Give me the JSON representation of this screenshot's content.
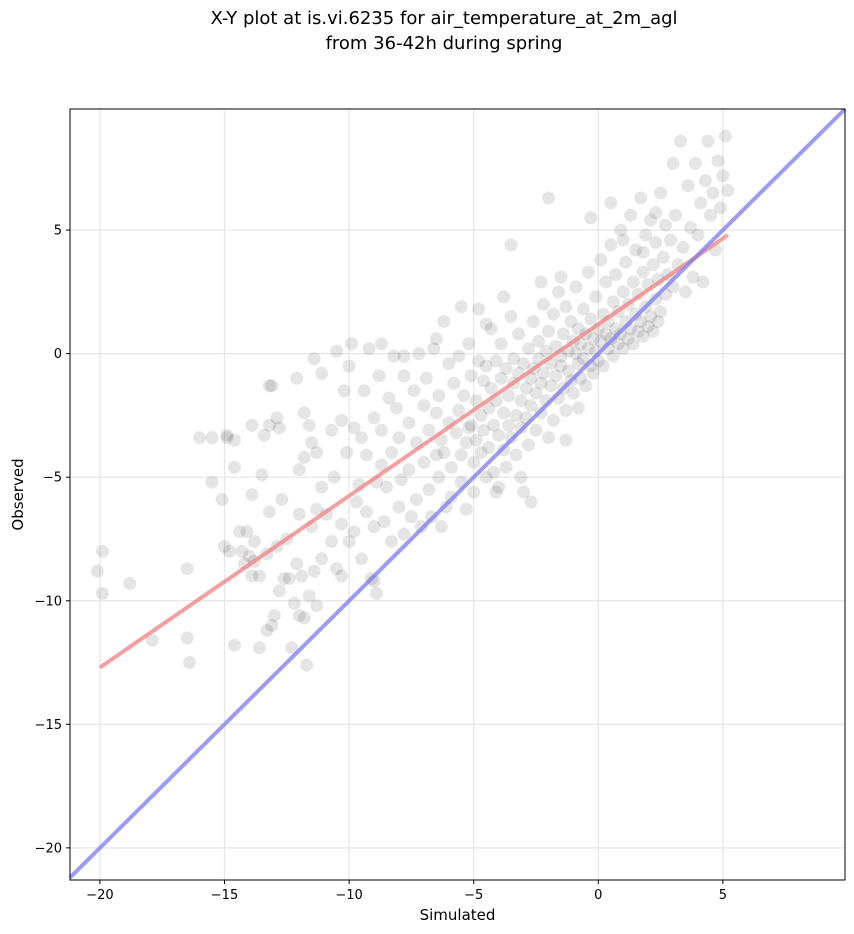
{
  "chart_data": {
    "type": "scatter",
    "title_line1": "X-Y plot at is.vi.6235 for air_temperature_at_2m_agl",
    "title_line2": "from 36-42h during spring",
    "xlabel": "Simulated",
    "ylabel": "Observed",
    "xlim": [
      -21.2,
      9.9
    ],
    "ylim": [
      -21.3,
      9.9
    ],
    "xticks": [
      -20,
      -15,
      -10,
      -5,
      0,
      5
    ],
    "yticks": [
      -20,
      -15,
      -10,
      -5,
      0,
      5
    ],
    "xtick_labels": [
      "−20",
      "−15",
      "−10",
      "−5",
      "0",
      "5"
    ],
    "ytick_labels": [
      "−20",
      "−15",
      "−10",
      "−5",
      "0",
      "5"
    ],
    "grid": true,
    "point_color": "#000000",
    "point_alpha": 0.1,
    "fit_line": {
      "color": "#f08080",
      "x": [
        -20.0,
        5.2
      ],
      "y": [
        -12.7,
        4.8
      ]
    },
    "identity_line": {
      "color": "#7b7bf0",
      "x": [
        -21.2,
        9.9
      ],
      "y": [
        -21.2,
        9.9
      ]
    },
    "points": [
      [
        -20.1,
        -8.8
      ],
      [
        -19.9,
        -8.0
      ],
      [
        -19.9,
        -9.7
      ],
      [
        -18.8,
        -9.3
      ],
      [
        -17.9,
        -11.6
      ],
      [
        -16.5,
        -8.7
      ],
      [
        -16.5,
        -11.5
      ],
      [
        -16.4,
        -12.5
      ],
      [
        -15.5,
        -3.4
      ],
      [
        -15.5,
        -5.2
      ],
      [
        -15.1,
        -5.9
      ],
      [
        -15.0,
        -7.8
      ],
      [
        -14.9,
        -3.3
      ],
      [
        -14.8,
        -8.0
      ],
      [
        -14.6,
        -3.5
      ],
      [
        -14.6,
        -4.6
      ],
      [
        -14.6,
        -11.8
      ],
      [
        -14.4,
        -7.2
      ],
      [
        -14.3,
        -8.0
      ],
      [
        -14.2,
        -8.5
      ],
      [
        -14.1,
        -7.2
      ],
      [
        -14.0,
        -8.2
      ],
      [
        -13.9,
        -9.0
      ],
      [
        -13.9,
        -5.7
      ],
      [
        -13.9,
        -2.9
      ],
      [
        -13.8,
        -7.6
      ],
      [
        -13.8,
        -8.4
      ],
      [
        -13.6,
        -11.9
      ],
      [
        -13.6,
        -9.0
      ],
      [
        -13.5,
        -4.9
      ],
      [
        -13.4,
        -3.3
      ],
      [
        -13.3,
        -8.1
      ],
      [
        -13.3,
        -11.2
      ],
      [
        -13.2,
        -2.9
      ],
      [
        -13.2,
        -6.4
      ],
      [
        -13.1,
        -1.3
      ],
      [
        -13.1,
        -11.0
      ],
      [
        -13.0,
        -10.6
      ],
      [
        -12.9,
        -2.6
      ],
      [
        -12.9,
        -7.8
      ],
      [
        -12.8,
        -9.6
      ],
      [
        -12.8,
        -3.0
      ],
      [
        -12.7,
        -5.9
      ],
      [
        -12.6,
        -9.1
      ],
      [
        -12.5,
        -7.5
      ],
      [
        -12.4,
        -9.1
      ],
      [
        -12.3,
        -11.9
      ],
      [
        -12.2,
        -10.1
      ],
      [
        -12.1,
        -1.0
      ],
      [
        -12.1,
        -8.5
      ],
      [
        -12.0,
        -4.7
      ],
      [
        -12.0,
        -6.5
      ],
      [
        -12.0,
        -10.6
      ],
      [
        -11.9,
        -9.0
      ],
      [
        -11.8,
        -4.2
      ],
      [
        -11.8,
        -10.7
      ],
      [
        -11.7,
        -12.6
      ],
      [
        -11.6,
        -2.9
      ],
      [
        -11.6,
        -9.8
      ],
      [
        -11.5,
        -3.6
      ],
      [
        -11.5,
        -7.0
      ],
      [
        -11.4,
        -0.2
      ],
      [
        -11.4,
        -8.8
      ],
      [
        -11.3,
        -6.3
      ],
      [
        -11.3,
        -4.0
      ],
      [
        -11.3,
        -10.2
      ],
      [
        -11.1,
        -0.8
      ],
      [
        -11.1,
        -5.4
      ],
      [
        -11.1,
        -8.3
      ],
      [
        -10.9,
        -6.5
      ],
      [
        -10.7,
        -7.6
      ],
      [
        -10.7,
        -3.1
      ],
      [
        -10.6,
        -5.0
      ],
      [
        -10.5,
        -8.7
      ],
      [
        -10.3,
        -2.7
      ],
      [
        -10.3,
        -6.9
      ],
      [
        -10.3,
        -9.0
      ],
      [
        -10.2,
        -1.5
      ],
      [
        -10.1,
        -4.0
      ],
      [
        -10.0,
        -7.6
      ],
      [
        -10.0,
        -0.5
      ],
      [
        -9.9,
        0.4
      ],
      [
        -9.8,
        -7.2
      ],
      [
        -9.8,
        -3.0
      ],
      [
        -9.7,
        -6.0
      ],
      [
        -9.6,
        -5.3
      ],
      [
        -9.5,
        -8.3
      ],
      [
        -9.5,
        -3.4
      ],
      [
        -9.4,
        -1.5
      ],
      [
        -9.3,
        -4.1
      ],
      [
        -9.3,
        -6.4
      ],
      [
        -9.2,
        0.2
      ],
      [
        -9.1,
        -9.1
      ],
      [
        -9.0,
        -7.0
      ],
      [
        -9.0,
        -2.6
      ],
      [
        -8.9,
        -5.2
      ],
      [
        -8.9,
        -9.7
      ],
      [
        -8.8,
        -0.9
      ],
      [
        -8.7,
        -3.1
      ],
      [
        -8.7,
        -4.5
      ],
      [
        -8.6,
        -6.8
      ],
      [
        -8.5,
        -5.4
      ],
      [
        -8.4,
        -1.8
      ],
      [
        -8.3,
        -7.6
      ],
      [
        -8.3,
        -4.0
      ],
      [
        -8.2,
        -0.1
      ],
      [
        -8.1,
        -2.2
      ],
      [
        -8.0,
        -6.2
      ],
      [
        -8.0,
        -3.4
      ],
      [
        -7.9,
        -5.1
      ],
      [
        -7.8,
        -7.3
      ],
      [
        -7.8,
        -0.9
      ],
      [
        -7.6,
        -4.7
      ],
      [
        -7.6,
        -2.8
      ],
      [
        -7.5,
        -6.6
      ],
      [
        -7.4,
        -1.5
      ],
      [
        -7.3,
        -5.9
      ],
      [
        -7.3,
        -3.6
      ],
      [
        -7.2,
        0.0
      ],
      [
        -7.1,
        -7.0
      ],
      [
        -7.0,
        -2.1
      ],
      [
        -7.0,
        -4.4
      ],
      [
        -6.9,
        -1.0
      ],
      [
        -6.8,
        -5.5
      ],
      [
        -6.8,
        -3.1
      ],
      [
        -6.7,
        -6.6
      ],
      [
        -6.6,
        0.2
      ],
      [
        -6.5,
        -2.4
      ],
      [
        -6.5,
        -4.1
      ],
      [
        -6.4,
        -5.0
      ],
      [
        -6.4,
        -1.7
      ],
      [
        -6.3,
        -7.0
      ],
      [
        -6.3,
        -3.5
      ],
      [
        -6.2,
        1.3
      ],
      [
        -6.1,
        -6.2
      ],
      [
        -6.0,
        -0.4
      ],
      [
        -6.0,
        -2.8
      ],
      [
        -5.9,
        -4.6
      ],
      [
        -5.9,
        -5.8
      ],
      [
        -5.8,
        -1.2
      ],
      [
        -5.7,
        -3.2
      ],
      [
        -5.6,
        -0.1
      ],
      [
        -5.6,
        -2.3
      ],
      [
        -5.5,
        -4.1
      ],
      [
        -5.5,
        -5.2
      ],
      [
        -5.4,
        -1.7
      ],
      [
        -5.3,
        -3.6
      ],
      [
        -5.3,
        -6.3
      ],
      [
        -5.2,
        0.4
      ],
      [
        -5.1,
        -0.9
      ],
      [
        -5.1,
        -2.9
      ],
      [
        -5.0,
        -4.4
      ],
      [
        -5.0,
        -5.6
      ],
      [
        -4.9,
        -1.9
      ],
      [
        -4.9,
        -3.5
      ],
      [
        -4.8,
        1.8
      ],
      [
        -4.8,
        -0.3
      ],
      [
        -4.7,
        -2.5
      ],
      [
        -4.7,
        -4.0
      ],
      [
        -4.6,
        -1.1
      ],
      [
        -4.6,
        -3.1
      ],
      [
        -4.5,
        -5.0
      ],
      [
        -4.5,
        -0.5
      ],
      [
        -4.4,
        -2.2
      ],
      [
        -4.4,
        -3.8
      ],
      [
        -4.3,
        1.0
      ],
      [
        -4.3,
        -1.4
      ],
      [
        -4.2,
        -2.9
      ],
      [
        -4.2,
        -4.8
      ],
      [
        -4.1,
        -0.3
      ],
      [
        -4.1,
        -1.9
      ],
      [
        -4.0,
        -3.3
      ],
      [
        -4.0,
        -5.4
      ],
      [
        -3.9,
        0.4
      ],
      [
        -3.9,
        -1.0
      ],
      [
        -3.8,
        -2.4
      ],
      [
        -3.8,
        -3.9
      ],
      [
        -3.7,
        -4.6
      ],
      [
        -3.7,
        -0.6
      ],
      [
        -3.6,
        -1.7
      ],
      [
        -3.6,
        -2.9
      ],
      [
        -3.5,
        1.5
      ],
      [
        -3.5,
        -3.4
      ],
      [
        -3.4,
        -0.2
      ],
      [
        -3.4,
        -1.2
      ],
      [
        -3.3,
        -2.5
      ],
      [
        -3.3,
        -4.1
      ],
      [
        -3.2,
        0.8
      ],
      [
        -3.2,
        -0.8
      ],
      [
        -3.1,
        -1.9
      ],
      [
        -3.1,
        -3.0
      ],
      [
        -3.0,
        -5.6
      ],
      [
        -3.0,
        -0.4
      ],
      [
        -2.9,
        -1.4
      ],
      [
        -2.9,
        -2.6
      ],
      [
        -2.8,
        0.2
      ],
      [
        -2.8,
        -3.7
      ],
      [
        -2.7,
        -1.0
      ],
      [
        -2.7,
        -2.1
      ],
      [
        -2.6,
        1.3
      ],
      [
        -2.6,
        -0.6
      ],
      [
        -2.5,
        -1.6
      ],
      [
        -2.5,
        -3.1
      ],
      [
        -2.4,
        0.5
      ],
      [
        -2.4,
        -0.2
      ],
      [
        -2.3,
        -1.2
      ],
      [
        -2.3,
        -2.4
      ],
      [
        -2.2,
        2.0
      ],
      [
        -2.2,
        -0.8
      ],
      [
        -2.1,
        0.1
      ],
      [
        -2.1,
        -1.9
      ],
      [
        -2.0,
        -3.4
      ],
      [
        -2.0,
        0.9
      ],
      [
        -1.9,
        -0.4
      ],
      [
        -1.9,
        -1.3
      ],
      [
        -1.8,
        -2.7
      ],
      [
        -1.8,
        1.6
      ],
      [
        -1.7,
        0.3
      ],
      [
        -1.7,
        -0.9
      ],
      [
        -1.6,
        -1.8
      ],
      [
        -1.6,
        2.5
      ],
      [
        -1.5,
        -0.1
      ],
      [
        -1.5,
        -0.5
      ],
      [
        -1.4,
        -1.4
      ],
      [
        -1.4,
        0.8
      ],
      [
        -1.3,
        1.9
      ],
      [
        -1.3,
        -2.3
      ],
      [
        -1.2,
        0.1
      ],
      [
        -1.2,
        -0.7
      ],
      [
        -1.1,
        1.3
      ],
      [
        -1.1,
        -1.1
      ],
      [
        -1.0,
        0.5
      ],
      [
        -1.0,
        -1.6
      ],
      [
        -0.9,
        2.7
      ],
      [
        -0.9,
        0.0
      ],
      [
        -0.8,
        -0.4
      ],
      [
        -0.8,
        1.0
      ],
      [
        -0.7,
        -1.0
      ],
      [
        -0.7,
        0.4
      ],
      [
        -0.6,
        1.8
      ],
      [
        -0.6,
        -0.2
      ],
      [
        -0.5,
        0.8
      ],
      [
        -0.5,
        -1.3
      ],
      [
        -0.4,
        3.3
      ],
      [
        -0.4,
        0.2
      ],
      [
        -0.3,
        -0.5
      ],
      [
        -0.3,
        1.4
      ],
      [
        -0.2,
        0.6
      ],
      [
        -0.2,
        -0.8
      ],
      [
        -0.1,
        2.3
      ],
      [
        -0.1,
        0.1
      ],
      [
        0.0,
        1.0
      ],
      [
        0.0,
        -0.3
      ],
      [
        0.1,
        3.8
      ],
      [
        0.1,
        0.5
      ],
      [
        0.2,
        1.6
      ],
      [
        0.2,
        -0.5
      ],
      [
        0.3,
        0.8
      ],
      [
        0.3,
        2.9
      ],
      [
        0.4,
        0.2
      ],
      [
        0.4,
        1.3
      ],
      [
        0.5,
        4.4
      ],
      [
        0.5,
        0.6
      ],
      [
        0.6,
        2.1
      ],
      [
        0.6,
        -0.1
      ],
      [
        0.7,
        1.0
      ],
      [
        0.7,
        3.2
      ],
      [
        0.8,
        0.4
      ],
      [
        0.8,
        1.7
      ],
      [
        0.9,
        5.0
      ],
      [
        0.9,
        0.8
      ],
      [
        1.0,
        2.5
      ],
      [
        1.0,
        0.2
      ],
      [
        1.1,
        1.3
      ],
      [
        1.1,
        3.7
      ],
      [
        1.2,
        0.6
      ],
      [
        1.2,
        2.0
      ],
      [
        1.3,
        5.6
      ],
      [
        1.3,
        1.0
      ],
      [
        1.4,
        2.9
      ],
      [
        1.4,
        0.4
      ],
      [
        1.5,
        1.6
      ],
      [
        1.5,
        4.2
      ],
      [
        1.6,
        0.9
      ],
      [
        1.6,
        2.4
      ],
      [
        1.7,
        6.3
      ],
      [
        1.7,
        1.3
      ],
      [
        1.8,
        3.3
      ],
      [
        1.8,
        0.7
      ],
      [
        1.9,
        1.9
      ],
      [
        1.9,
        4.8
      ],
      [
        2.0,
        1.1
      ],
      [
        2.0,
        2.8
      ],
      [
        2.1,
        5.4
      ],
      [
        2.1,
        1.5
      ],
      [
        2.2,
        3.6
      ],
      [
        2.2,
        0.9
      ],
      [
        2.3,
        2.2
      ],
      [
        2.3,
        4.5
      ],
      [
        2.4,
        1.3
      ],
      [
        2.4,
        3.0
      ],
      [
        2.5,
        6.5
      ],
      [
        2.5,
        1.7
      ],
      [
        2.6,
        3.9
      ],
      [
        2.7,
        2.4
      ],
      [
        2.7,
        5.2
      ],
      [
        2.8,
        3.2
      ],
      [
        2.9,
        4.6
      ],
      [
        3.0,
        2.7
      ],
      [
        3.0,
        7.7
      ],
      [
        3.1,
        5.6
      ],
      [
        3.2,
        3.6
      ],
      [
        3.3,
        8.6
      ],
      [
        3.4,
        4.3
      ],
      [
        3.5,
        2.5
      ],
      [
        3.6,
        6.8
      ],
      [
        3.7,
        5.1
      ],
      [
        3.8,
        3.1
      ],
      [
        3.9,
        7.7
      ],
      [
        4.0,
        4.8
      ],
      [
        4.1,
        6.1
      ],
      [
        4.2,
        2.9
      ],
      [
        4.3,
        7.0
      ],
      [
        4.4,
        8.6
      ],
      [
        4.5,
        5.6
      ],
      [
        4.6,
        6.5
      ],
      [
        4.7,
        4.2
      ],
      [
        4.8,
        7.8
      ],
      [
        4.9,
        5.9
      ],
      [
        5.0,
        7.2
      ],
      [
        5.1,
        8.8
      ],
      [
        5.2,
        6.6
      ],
      [
        -2.0,
        6.3
      ],
      [
        -3.5,
        4.4
      ],
      [
        -5.5,
        1.9
      ],
      [
        -6.5,
        0.6
      ],
      [
        -8.7,
        0.4
      ],
      [
        -10.5,
        0.1
      ],
      [
        -13.2,
        -1.3
      ],
      [
        -14.9,
        -3.4
      ],
      [
        -16.0,
        -3.4
      ],
      [
        -9.0,
        -9.2
      ],
      [
        -11.8,
        -2.4
      ],
      [
        -7.8,
        -0.1
      ],
      [
        -0.3,
        5.5
      ],
      [
        0.5,
        6.1
      ],
      [
        1.0,
        4.6
      ],
      [
        1.8,
        4.1
      ],
      [
        2.3,
        5.7
      ],
      [
        -1.5,
        3.1
      ],
      [
        -2.3,
        2.9
      ],
      [
        -3.8,
        2.3
      ],
      [
        -4.5,
        1.2
      ],
      [
        -5.2,
        -3.0
      ],
      [
        -6.2,
        -4.0
      ],
      [
        -3.1,
        -5.0
      ],
      [
        -2.7,
        -6.0
      ],
      [
        -4.1,
        -5.6
      ],
      [
        -0.8,
        -2.2
      ],
      [
        -1.3,
        -3.5
      ]
    ]
  }
}
